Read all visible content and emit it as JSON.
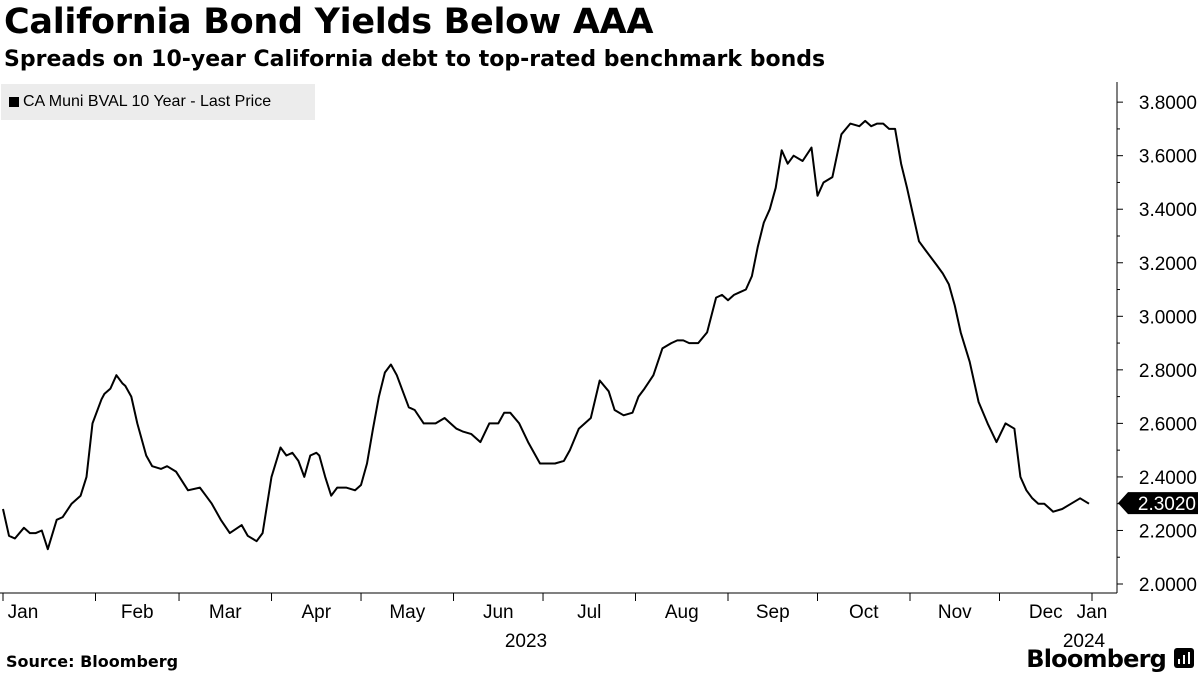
{
  "chart_data": {
    "type": "line",
    "title": "California Bond Yields Below AAA",
    "subtitle": "Spreads on 10-year California debt to top-rated benchmark bonds",
    "legend": {
      "label": "CA Muni BVAL 10 Year - Last Price",
      "color": "#000000",
      "placement": "top-left"
    },
    "series": [
      {
        "name": "CA Muni BVAL 10 Year - Last Price",
        "x_day_index": [
          0,
          2,
          4,
          7,
          9,
          11,
          13,
          15,
          18,
          20,
          23,
          26,
          28,
          30,
          33,
          34,
          36,
          38,
          40,
          41,
          43,
          45,
          48,
          50,
          53,
          55,
          58,
          62,
          66,
          68,
          70,
          73,
          76,
          80,
          82,
          85,
          87,
          90,
          93,
          95,
          97,
          99,
          101,
          103,
          105,
          106,
          108,
          110,
          112,
          115,
          118,
          120,
          122,
          124,
          126,
          128,
          130,
          132,
          134,
          136,
          138,
          141,
          145,
          148,
          150,
          152,
          154,
          157,
          160,
          163,
          166,
          168,
          170,
          173,
          176,
          180,
          185,
          188,
          190,
          193,
          197,
          200,
          203,
          205,
          208,
          211,
          213,
          215,
          218,
          221,
          224,
          226,
          228,
          230,
          233,
          236,
          239,
          241,
          243,
          245,
          247,
          249,
          251,
          253,
          255,
          257,
          259,
          261,
          263,
          265,
          268,
          271,
          273,
          275,
          278,
          281,
          284,
          287,
          289,
          291,
          293,
          295,
          297,
          299,
          301,
          303,
          305,
          307,
          309,
          311,
          313,
          315,
          317,
          319,
          321,
          324,
          327,
          330,
          333,
          336,
          339,
          341,
          343,
          345,
          347,
          349,
          352,
          355,
          358,
          361,
          364
        ],
        "values": [
          2.28,
          2.18,
          2.17,
          2.21,
          2.19,
          2.19,
          2.2,
          2.13,
          2.24,
          2.25,
          2.3,
          2.33,
          2.4,
          2.6,
          2.69,
          2.71,
          2.73,
          2.78,
          2.75,
          2.74,
          2.7,
          2.6,
          2.48,
          2.44,
          2.43,
          2.44,
          2.42,
          2.35,
          2.36,
          2.33,
          2.3,
          2.24,
          2.19,
          2.22,
          2.18,
          2.16,
          2.19,
          2.4,
          2.51,
          2.48,
          2.49,
          2.46,
          2.4,
          2.48,
          2.49,
          2.48,
          2.4,
          2.33,
          2.36,
          2.36,
          2.35,
          2.37,
          2.45,
          2.58,
          2.7,
          2.79,
          2.82,
          2.78,
          2.72,
          2.66,
          2.65,
          2.6,
          2.6,
          2.62,
          2.6,
          2.58,
          2.57,
          2.56,
          2.53,
          2.6,
          2.6,
          2.64,
          2.64,
          2.6,
          2.53,
          2.45,
          2.45,
          2.46,
          2.5,
          2.58,
          2.62,
          2.76,
          2.72,
          2.65,
          2.63,
          2.64,
          2.7,
          2.73,
          2.78,
          2.88,
          2.9,
          2.91,
          2.91,
          2.9,
          2.9,
          2.94,
          3.07,
          3.08,
          3.06,
          3.08,
          3.09,
          3.1,
          3.15,
          3.26,
          3.35,
          3.4,
          3.48,
          3.62,
          3.57,
          3.6,
          3.58,
          3.63,
          3.45,
          3.5,
          3.52,
          3.68,
          3.72,
          3.71,
          3.73,
          3.71,
          3.72,
          3.72,
          3.7,
          3.7,
          3.57,
          3.48,
          3.38,
          3.28,
          3.25,
          3.22,
          3.19,
          3.16,
          3.12,
          3.04,
          2.94,
          2.83,
          2.68,
          2.6,
          2.53,
          2.6,
          2.58,
          2.4,
          2.35,
          2.32,
          2.3,
          2.3,
          2.27,
          2.28,
          2.3,
          2.32,
          2.3
        ]
      }
    ],
    "x_axis": {
      "ticks": [
        {
          "label": "Jan",
          "day": 0
        },
        {
          "label": "Feb",
          "day": 31
        },
        {
          "label": "Mar",
          "day": 59
        },
        {
          "label": "Apr",
          "day": 90
        },
        {
          "label": "May",
          "day": 120
        },
        {
          "label": "Jun",
          "day": 151
        },
        {
          "label": "Jul",
          "day": 181
        },
        {
          "label": "Aug",
          "day": 212
        },
        {
          "label": "Sep",
          "day": 243
        },
        {
          "label": "Oct",
          "day": 273
        },
        {
          "label": "Nov",
          "day": 304
        },
        {
          "label": "Dec",
          "day": 334
        },
        {
          "label": "Jan",
          "day": 365
        }
      ],
      "year_labels": [
        {
          "label": "2023",
          "day": 181
        },
        {
          "label": "2024",
          "day": 365
        }
      ],
      "range": [
        0,
        365
      ]
    },
    "y_axis": {
      "ticks": [
        "2.0000",
        "2.2000",
        "2.4000",
        "2.6000",
        "2.8000",
        "3.0000",
        "3.2000",
        "3.4000",
        "3.6000",
        "3.8000"
      ],
      "range": [
        1.95,
        3.88
      ],
      "position": "right"
    },
    "last_value": {
      "label": "2.3020",
      "value": 2.302
    },
    "grid": "none"
  },
  "footer": {
    "source": "Source: Bloomberg",
    "brand": "Bloomberg"
  }
}
